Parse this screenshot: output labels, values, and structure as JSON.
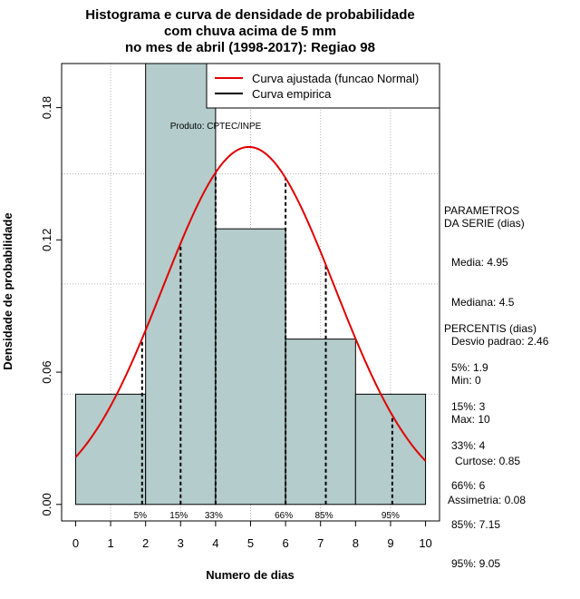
{
  "chart_data": {
    "type": "bar",
    "title_lines": [
      "Histograma e curva de densidade de probabilidade",
      "com chuva acima de 5 mm",
      "no mes de abril (1998-2017): Regiao 98"
    ],
    "xlabel": "Numero de dias",
    "ylabel": "Densidade de probabilidade",
    "xlim": [
      -0.4,
      10.4
    ],
    "ylim": [
      -0.0075,
      0.2
    ],
    "x_ticks": [
      0,
      1,
      2,
      3,
      4,
      5,
      6,
      7,
      8,
      9,
      10
    ],
    "y_ticks": [
      0.0,
      0.06,
      0.12,
      0.18
    ],
    "y_tick_labels": [
      "0.00",
      "0.06",
      "0.12",
      "0.18"
    ],
    "grid": true,
    "source_note": "Produto: CPTEC/INPE",
    "colors": {
      "bar_fill": "#b4cccb",
      "normal_curve": "#e00000",
      "empirical": "#000000",
      "grid": "#b4b4b4",
      "percentile_line": "#000000"
    },
    "bins": [
      {
        "start": 0,
        "end": 2,
        "density": 0.05
      },
      {
        "start": 2,
        "end": 4,
        "density": 0.2
      },
      {
        "start": 4,
        "end": 6,
        "density": 0.125
      },
      {
        "start": 6,
        "end": 8,
        "density": 0.075
      },
      {
        "start": 8,
        "end": 10,
        "density": 0.05
      }
    ],
    "normal_fit": {
      "mean": 4.95,
      "sd": 2.46
    },
    "percentiles": [
      {
        "label": "5%",
        "x": 1.9
      },
      {
        "label": "15%",
        "x": 3
      },
      {
        "label": "33%",
        "x": 4
      },
      {
        "label": "66%",
        "x": 6
      },
      {
        "label": "85%",
        "x": 7.15
      },
      {
        "label": "95%",
        "x": 9.05
      }
    ],
    "legend": [
      {
        "label": "Curva ajustada (funcao Normal)",
        "color": "#e00000"
      },
      {
        "label": "Curva empirica",
        "color": "#000000"
      }
    ],
    "legend_position": "top-right"
  },
  "side_panel": {
    "parametros_title": "PARAMETROS\nDA SERIE (dias)",
    "parametros": [
      "Media: 4.95",
      "Mediana: 4.5",
      "Desvio padrao: 2.46",
      "Min: 0",
      "Max: 10"
    ],
    "percentis_title": "PERCENTIS (dias)",
    "percentis": [
      "5%: 1.9",
      "15%: 3",
      "33%: 4",
      "66%: 6",
      "85%: 7.15",
      "95%: 9.05"
    ],
    "curtose": "Curtose: 0.85",
    "assimetria": "Assimetria: 0.08"
  }
}
